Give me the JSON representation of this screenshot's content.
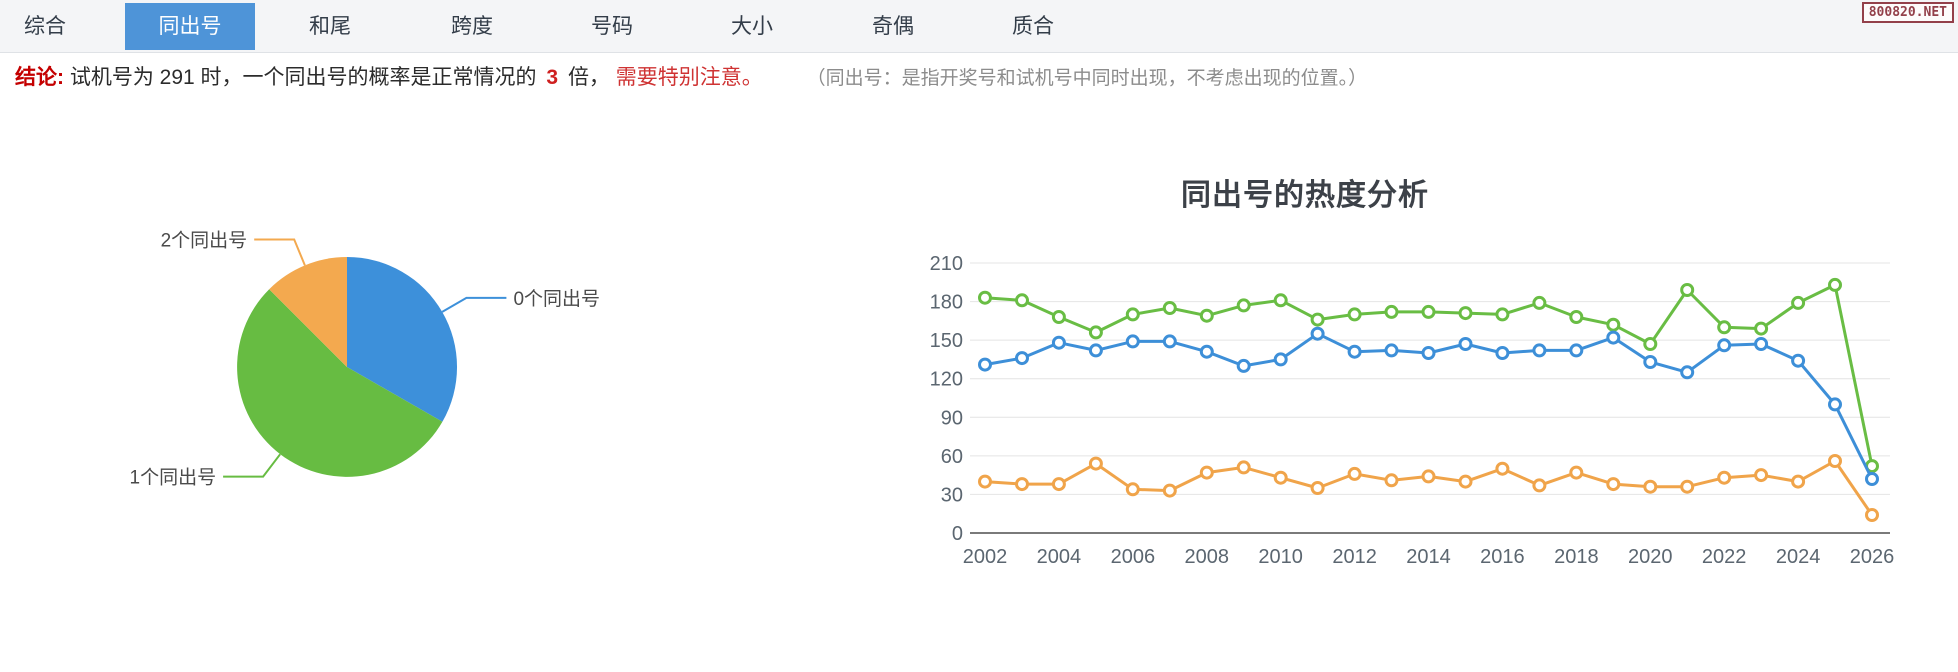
{
  "nav": {
    "tabs": [
      {
        "label": "综合",
        "active": false
      },
      {
        "label": "同出号",
        "active": true
      },
      {
        "label": "和尾",
        "active": false
      },
      {
        "label": "跨度",
        "active": false
      },
      {
        "label": "号码",
        "active": false
      },
      {
        "label": "大小",
        "active": false
      },
      {
        "label": "奇偶",
        "active": false
      },
      {
        "label": "质合",
        "active": false
      }
    ]
  },
  "badge": {
    "text": "800820.NET"
  },
  "conclusion": {
    "label": "结论:",
    "part1": "试机号为 291 时，一个同出号的概率是正常情况的",
    "number": "3",
    "part2": "倍，",
    "warning": "需要特别注意。",
    "note": "（同出号：是指开奖号和试机号中同时出现，不考虑出现的位置。）"
  },
  "chart_data": [
    {
      "type": "pie",
      "slices": [
        {
          "label": "0个同出号",
          "percent": 33.3,
          "color": "#3d90da"
        },
        {
          "label": "1个同出号",
          "percent": 54.2,
          "color": "#67bc42"
        },
        {
          "label": "2个同出号",
          "percent": 12.5,
          "color": "#f3a94f"
        }
      ]
    },
    {
      "type": "line",
      "title": "同出号的热度分析",
      "x": [
        2002,
        2003,
        2004,
        2005,
        2006,
        2007,
        2008,
        2009,
        2010,
        2011,
        2012,
        2013,
        2014,
        2015,
        2016,
        2017,
        2018,
        2019,
        2020,
        2021,
        2022,
        2023,
        2024,
        2025,
        2026
      ],
      "x_tick_labels": [
        "2002",
        "2004",
        "2006",
        "2008",
        "2010",
        "2012",
        "2014",
        "2016",
        "2018",
        "2020",
        "2022",
        "2024",
        "2026"
      ],
      "y_ticks": [
        0,
        30,
        60,
        90,
        120,
        150,
        180,
        210
      ],
      "ylim": [
        0,
        210
      ],
      "grid": true,
      "legend": "none",
      "series": [
        {
          "name": "1个同出号",
          "color": "#69bd44",
          "values": [
            183,
            181,
            168,
            156,
            170,
            175,
            169,
            177,
            181,
            166,
            170,
            172,
            172,
            171,
            170,
            179,
            168,
            162,
            147,
            189,
            160,
            159,
            179,
            193,
            52
          ]
        },
        {
          "name": "0个同出号",
          "color": "#3d8fd8",
          "values": [
            131,
            136,
            148,
            142,
            149,
            149,
            141,
            130,
            135,
            155,
            141,
            142,
            140,
            147,
            140,
            142,
            142,
            152,
            133,
            125,
            146,
            147,
            134,
            100,
            42
          ]
        },
        {
          "name": "2个同出号",
          "color": "#f0a44a",
          "values": [
            40,
            38,
            38,
            54,
            34,
            33,
            47,
            51,
            43,
            35,
            46,
            41,
            44,
            40,
            50,
            37,
            47,
            38,
            36,
            36,
            43,
            45,
            40,
            56,
            14
          ]
        }
      ]
    }
  ]
}
